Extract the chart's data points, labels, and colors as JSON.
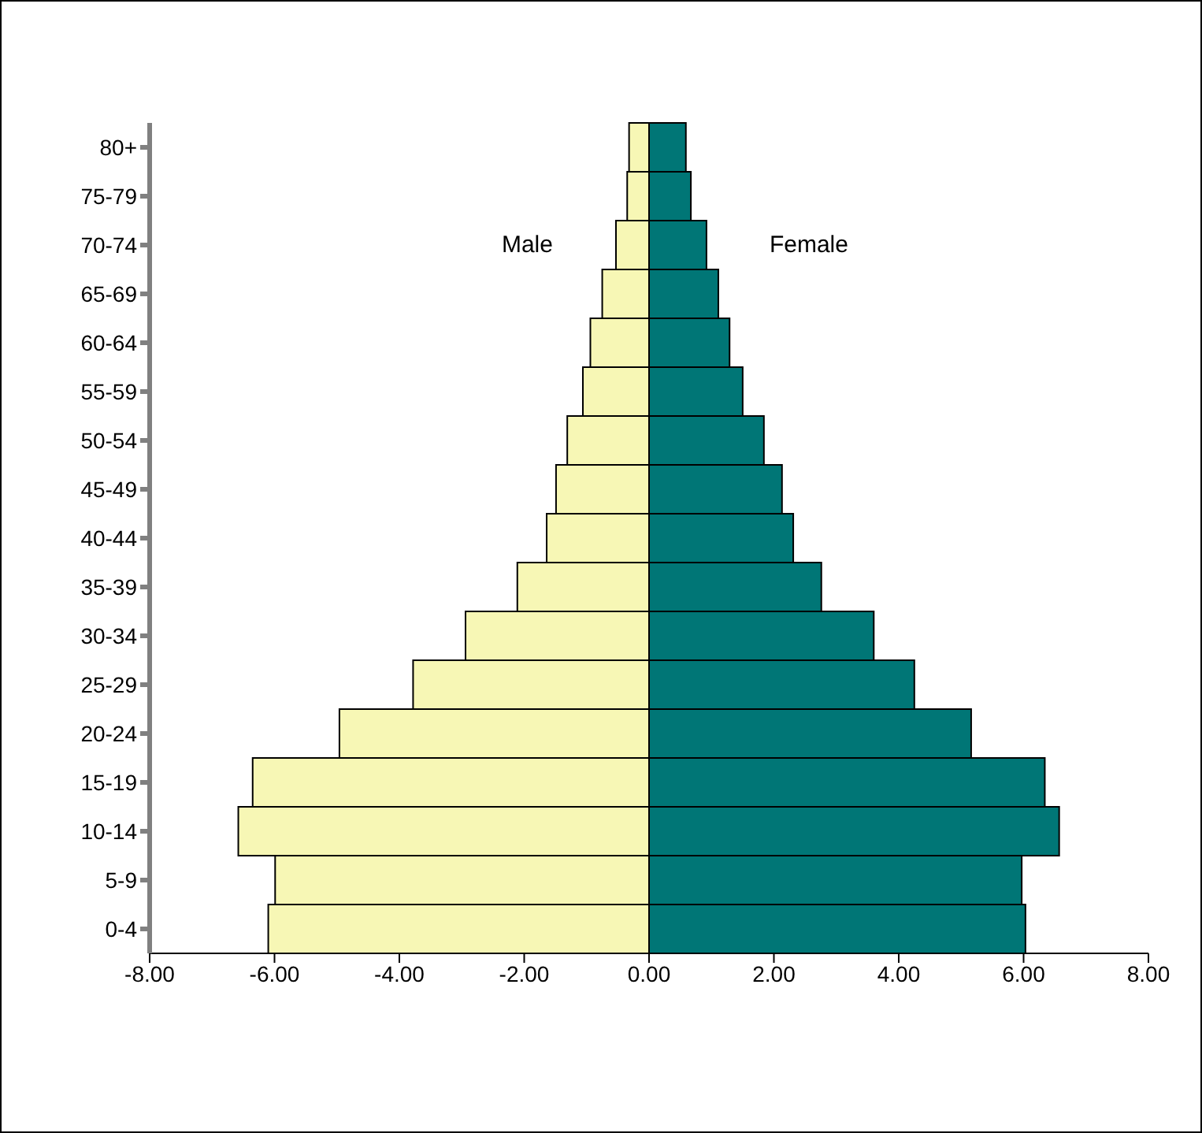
{
  "chart_data": {
    "type": "bar",
    "orientation": "horizontal",
    "stacked": true,
    "legend": false,
    "grid": false,
    "categories": [
      "80+",
      "75-79",
      "70-74",
      "65-69",
      "60-64",
      "55-59",
      "50-54",
      "45-49",
      "40-44",
      "35-39",
      "30-34",
      "25-29",
      "20-24",
      "15-19",
      "10-14",
      "5-9",
      "0-4"
    ],
    "series": [
      {
        "name": "Male",
        "color": "#f7f7b5",
        "values": [
          -0.32,
          -0.35,
          -0.53,
          -0.75,
          -0.94,
          -1.06,
          -1.31,
          -1.49,
          -1.64,
          -2.11,
          -2.94,
          -3.78,
          -4.96,
          -6.35,
          -6.58,
          -5.99,
          -6.1
        ]
      },
      {
        "name": "Female",
        "color": "#007676",
        "values": [
          0.59,
          0.67,
          0.92,
          1.11,
          1.29,
          1.5,
          1.84,
          2.13,
          2.31,
          2.76,
          3.6,
          4.25,
          5.16,
          6.34,
          6.57,
          5.97,
          6.03
        ]
      }
    ],
    "xlim": [
      -8,
      8
    ],
    "xticks": [
      {
        "value": -8,
        "label": "-8.00"
      },
      {
        "value": -6,
        "label": "-6.00"
      },
      {
        "value": -4,
        "label": "-4.00"
      },
      {
        "value": -2,
        "label": "-2.00"
      },
      {
        "value": 0,
        "label": "0.00"
      },
      {
        "value": 2,
        "label": "2.00"
      },
      {
        "value": 4,
        "label": "4.00"
      },
      {
        "value": 6,
        "label": "6.00"
      },
      {
        "value": 8,
        "label": "8.00"
      }
    ]
  }
}
